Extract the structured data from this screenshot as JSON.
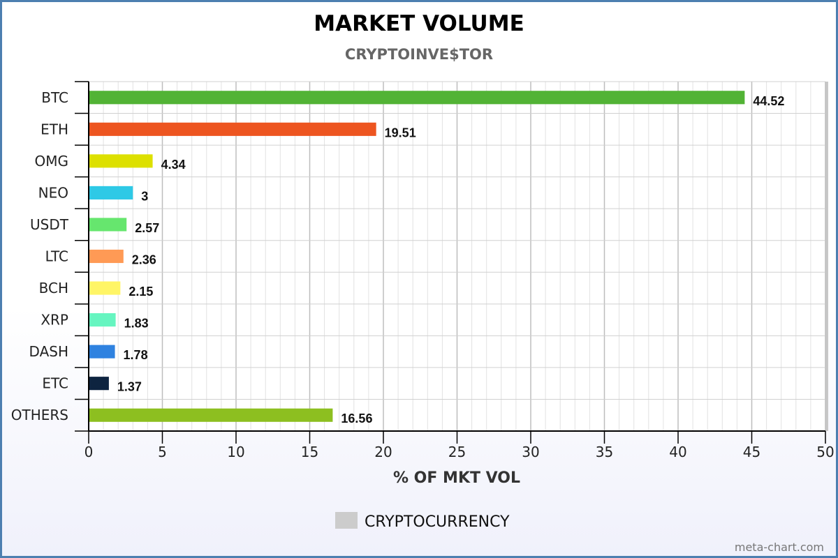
{
  "chart_data": {
    "type": "bar",
    "orientation": "horizontal",
    "title": "MARKET VOLUME",
    "subtitle": "CRYPTOINVE$TOR",
    "xlabel": "% OF MKT VOL",
    "ylabel": "",
    "categories": [
      "BTC",
      "ETH",
      "OMG",
      "NEO",
      "USDT",
      "LTC",
      "BCH",
      "XRP",
      "DASH",
      "ETC",
      "OTHERS"
    ],
    "values": [
      44.52,
      19.51,
      4.34,
      3,
      2.57,
      2.36,
      2.15,
      1.83,
      1.78,
      1.37,
      16.56
    ],
    "value_labels": [
      "44.52",
      "19.51",
      "4.34",
      "3",
      "2.57",
      "2.36",
      "2.15",
      "1.83",
      "1.78",
      "1.37",
      "16.56"
    ],
    "colors": [
      "#52b335",
      "#ed5520",
      "#dde000",
      "#2ec9e6",
      "#66e66e",
      "#ff9a55",
      "#fff566",
      "#66f5c0",
      "#2f82e0",
      "#0e2440",
      "#8dbf20"
    ],
    "xlim": [
      0,
      50
    ],
    "xticks": [
      0,
      5,
      10,
      15,
      20,
      25,
      30,
      35,
      40,
      45,
      50
    ],
    "grid": true,
    "legend": {
      "position": "bottom",
      "entries": [
        {
          "name": "CRYPTOCURRENCY",
          "color": "#cccccc"
        }
      ]
    }
  },
  "credit": "meta-chart.com"
}
